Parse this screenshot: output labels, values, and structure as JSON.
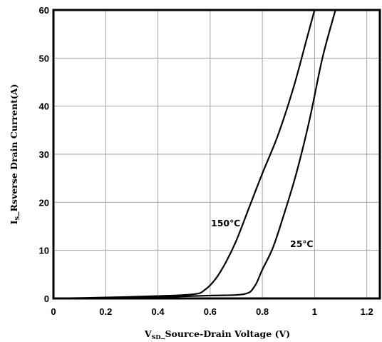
{
  "chart_data": {
    "type": "line",
    "xlabel": {
      "main": "V",
      "sub": "SD",
      "rest": "_Source-Drain Voltage (V)"
    },
    "ylabel": {
      "main": "I",
      "sub": "S",
      "rest": "_Rsverse Drain Current(A)"
    },
    "xlim": [
      0,
      1.25
    ],
    "ylim": [
      0,
      60
    ],
    "xticks": [
      0,
      0.2,
      0.4,
      0.6,
      0.8,
      1.0,
      1.2
    ],
    "xtick_labels": [
      "0",
      "0.2",
      "0.4",
      "0.6",
      "0.8",
      "1",
      "1.2"
    ],
    "yticks": [
      0,
      10,
      20,
      30,
      40,
      50,
      60
    ],
    "ytick_labels": [
      "0",
      "10",
      "20",
      "30",
      "40",
      "50",
      "60"
    ],
    "grid": true,
    "series": [
      {
        "name": "150℃",
        "x": [
          0,
          0.2,
          0.4,
          0.54,
          0.58,
          0.62,
          0.66,
          0.7,
          0.75,
          0.8,
          0.86,
          0.92,
          0.97,
          1.0
        ],
        "y": [
          0,
          0.2,
          0.5,
          0.9,
          1.8,
          4.0,
          7.5,
          12,
          19,
          26,
          34,
          44,
          54,
          60
        ]
      },
      {
        "name": "25℃",
        "x": [
          0,
          0.2,
          0.4,
          0.6,
          0.73,
          0.77,
          0.8,
          0.84,
          0.88,
          0.93,
          0.98,
          1.03,
          1.08
        ],
        "y": [
          0,
          0.1,
          0.3,
          0.6,
          0.9,
          2.5,
          6,
          10.5,
          17,
          26,
          37,
          50,
          60
        ]
      }
    ]
  }
}
